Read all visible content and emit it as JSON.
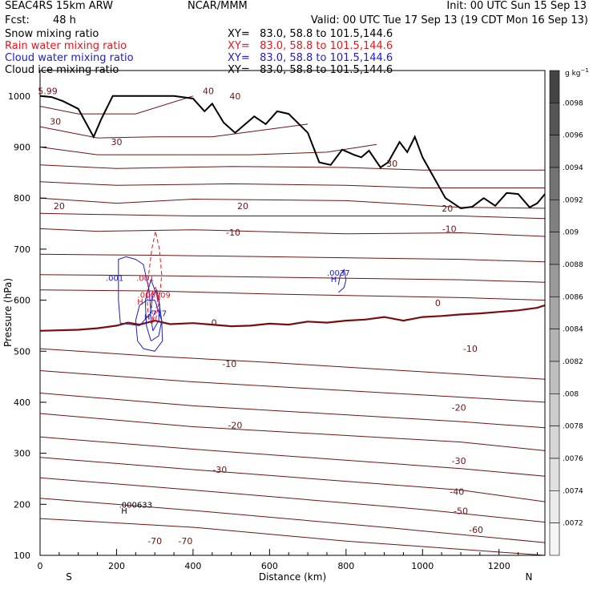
{
  "header": {
    "model": "SEAC4RS 15km ARW",
    "forecast_label": "Fcst:",
    "forecast_value": "48 h",
    "center": "NCAR/MMM",
    "init": "Init: 00 UTC Sun 15 Sep 13",
    "valid": "Valid: 00 UTC Tue 17 Sep 13 (19 CDT Mon 16 Sep 13)"
  },
  "fields": [
    {
      "name": "Snow mixing ratio",
      "xy": "XY=   83.0, 58.8 to 101.5,144.6",
      "color": "#000000"
    },
    {
      "name": "Rain water mixing ratio",
      "xy": "XY=   83.0, 58.8 to 101.5,144.6",
      "color": "#e8161e"
    },
    {
      "name": "Cloud water mixing ratio",
      "xy": "XY=   83.0, 58.8 to 101.5,144.6",
      "color": "#1c1ccc"
    },
    {
      "name": "Cloud ice mixing ratio",
      "xy": "XY=   83.0, 58.8 to 101.5,144.6",
      "color": "#000000"
    }
  ],
  "colors": {
    "temperature": "#6e1414",
    "freezing": "#7a0e0e",
    "rain": "#e8161e",
    "cloud": "#1c1ccc",
    "terrain": "#000000"
  },
  "chart_data": {
    "type": "cross-section",
    "xlabel": "Distance (km)",
    "ylabel": "Pressure (hPa)",
    "xlim": [
      0,
      1320
    ],
    "ylim": [
      1050,
      100
    ],
    "x_ticks": [
      0,
      200,
      400,
      600,
      800,
      1000,
      1200
    ],
    "y_ticks": [
      1000,
      900,
      800,
      700,
      600,
      500,
      400,
      300,
      200,
      100
    ],
    "endpoints": {
      "left": "S",
      "right": "N"
    },
    "colorbar": {
      "unit": "g kg",
      "unit_exp": "−1",
      "labels": [
        ".0098",
        ".0096",
        ".0094",
        ".0092",
        ".009",
        ".0088",
        ".0086",
        ".0084",
        ".0082",
        ".008",
        ".0078",
        ".0076",
        ".0074",
        ".0072"
      ]
    },
    "isotherm_labels": [
      {
        "text": "-70",
        "x": 300,
        "p": 128
      },
      {
        "text": "-70",
        "x": 380,
        "p": 128
      },
      {
        "text": "-60",
        "x": 1140,
        "p": 150
      },
      {
        "text": "-50",
        "x": 1100,
        "p": 187
      },
      {
        "text": "-40",
        "x": 1090,
        "p": 225
      },
      {
        "text": "-30",
        "x": 470,
        "p": 268
      },
      {
        "text": "-30",
        "x": 1095,
        "p": 285
      },
      {
        "text": "-20",
        "x": 510,
        "p": 355
      },
      {
        "text": "-20",
        "x": 1095,
        "p": 390
      },
      {
        "text": "-10",
        "x": 495,
        "p": 475
      },
      {
        "text": "-10",
        "x": 1125,
        "p": 505
      },
      {
        "text": "0",
        "x": 455,
        "p": 556
      },
      {
        "text": "0",
        "x": 1040,
        "p": 595
      },
      {
        "text": "-10",
        "x": 505,
        "p": 733
      },
      {
        "text": "-10",
        "x": 1070,
        "p": 740
      },
      {
        "text": "20",
        "x": 50,
        "p": 785
      },
      {
        "text": "20",
        "x": 530,
        "p": 785
      },
      {
        "text": "20",
        "x": 1065,
        "p": 780
      },
      {
        "text": "30",
        "x": 200,
        "p": 910
      },
      {
        "text": "30",
        "x": 40,
        "p": 950
      },
      {
        "text": "30",
        "x": 920,
        "p": 868
      },
      {
        "text": "40",
        "x": 440,
        "p": 1010
      },
      {
        "text": "40",
        "x": 510,
        "p": 1000
      },
      {
        "text": "5.99",
        "x": 20,
        "p": 1010
      }
    ],
    "isotherms": [
      {
        "x": [
          0,
          400,
          800,
          1320
        ],
        "p": [
          172,
          155,
          128,
          100
        ]
      },
      {
        "x": [
          0,
          400,
          900,
          1320
        ],
        "p": [
          212,
          188,
          155,
          125
        ]
      },
      {
        "x": [
          0,
          400,
          1000,
          1320
        ],
        "p": [
          252,
          228,
          190,
          165
        ]
      },
      {
        "x": [
          0,
          400,
          1100,
          1320
        ],
        "p": [
          292,
          268,
          228,
          205
        ]
      },
      {
        "x": [
          0,
          400,
          1100,
          1320
        ],
        "p": [
          332,
          308,
          270,
          255
        ]
      },
      {
        "x": [
          0,
          400,
          1100,
          1320
        ],
        "p": [
          378,
          352,
          322,
          305
        ]
      },
      {
        "x": [
          0,
          400,
          1100,
          1320
        ],
        "p": [
          418,
          393,
          362,
          350
        ]
      },
      {
        "x": [
          0,
          400,
          1100,
          1320
        ],
        "p": [
          462,
          440,
          410,
          400
        ]
      },
      {
        "x": [
          0,
          300,
          600,
          1100,
          1320
        ],
        "p": [
          505,
          490,
          478,
          455,
          445
        ]
      },
      {
        "x": [
          0,
          300,
          600,
          1100,
          1320
        ],
        "p": [
          620,
          618,
          612,
          605,
          600
        ]
      },
      {
        "x": [
          0,
          300,
          600,
          1100,
          1320
        ],
        "p": [
          650,
          648,
          645,
          640,
          635
        ]
      },
      {
        "x": [
          0,
          300,
          600,
          1100,
          1320
        ],
        "p": [
          690,
          688,
          685,
          680,
          675
        ]
      },
      {
        "x": [
          0,
          150,
          400,
          800,
          1100,
          1320
        ],
        "p": [
          740,
          735,
          738,
          730,
          732,
          725
        ]
      },
      {
        "x": [
          0,
          150,
          400,
          800,
          1100,
          1320
        ],
        "p": [
          770,
          768,
          765,
          765,
          765,
          760
        ]
      },
      {
        "x": [
          0,
          200,
          400,
          800,
          1100,
          1320
        ],
        "p": [
          800,
          790,
          798,
          795,
          782,
          780
        ]
      },
      {
        "x": [
          0,
          200,
          500,
          800,
          1000,
          1320
        ],
        "p": [
          832,
          825,
          828,
          825,
          820,
          820
        ]
      },
      {
        "x": [
          0,
          200,
          500,
          800,
          1000,
          1320
        ],
        "p": [
          865,
          858,
          862,
          860,
          855,
          855
        ]
      },
      {
        "x": [
          0,
          150,
          300,
          550,
          750,
          880
        ],
        "p": [
          900,
          885,
          885,
          885,
          890,
          905
        ]
      },
      {
        "x": [
          0,
          150,
          300,
          450,
          550,
          700
        ],
        "p": [
          940,
          918,
          920,
          920,
          930,
          945
        ]
      },
      {
        "x": [
          0,
          100,
          250,
          400
        ],
        "p": [
          980,
          965,
          965,
          1000
        ]
      }
    ],
    "freezing_line": {
      "x": [
        0,
        100,
        150,
        200,
        230,
        260,
        300,
        340,
        400,
        450,
        500,
        550,
        600,
        650,
        700,
        750,
        800,
        850,
        900,
        950,
        1000,
        1050,
        1100,
        1150,
        1200,
        1250,
        1300,
        1320
      ],
      "p": [
        540,
        542,
        545,
        550,
        556,
        552,
        560,
        553,
        555,
        552,
        549,
        550,
        554,
        552,
        558,
        556,
        560,
        562,
        567,
        560,
        567,
        569,
        572,
        574,
        577,
        580,
        585,
        590
      ]
    },
    "rain_contours": [
      {
        "x": [
          290,
          302,
          312,
          318,
          312,
          302,
          292,
          284,
          280,
          284,
          290
        ],
        "p": [
          555,
          560,
          600,
          650,
          700,
          735,
          700,
          650,
          600,
          560,
          555
        ]
      },
      {
        "x": [
          295,
          302,
          307,
          302,
          295,
          291,
          295
        ],
        "p": [
          560,
          575,
          600,
          625,
          620,
          595,
          560
        ]
      }
    ],
    "cloud_contours": [
      {
        "x": [
          270,
          300,
          320,
          318,
          300,
          280,
          260,
          250,
          255,
          270
        ],
        "p": [
          505,
          500,
          520,
          560,
          600,
          600,
          590,
          560,
          520,
          505
        ]
      },
      {
        "x": [
          290,
          310,
          318,
          310,
          290,
          275,
          278,
          290
        ],
        "p": [
          520,
          530,
          560,
          600,
          640,
          600,
          550,
          520
        ]
      },
      {
        "x": [
          295,
          310,
          313,
          305,
          295,
          288,
          295
        ],
        "p": [
          540,
          560,
          590,
          620,
          610,
          575,
          540
        ]
      },
      {
        "x": [
          210,
          260,
          290,
          285,
          270,
          250,
          225,
          205,
          205,
          210
        ],
        "p": [
          555,
          550,
          575,
          620,
          670,
          680,
          685,
          680,
          600,
          555
        ]
      },
      {
        "x": [
          780,
          795,
          800,
          795,
          785,
          780
        ],
        "p": [
          615,
          625,
          640,
          660,
          650,
          630
        ]
      }
    ],
    "point_labels": [
      {
        "text": "H",
        "x": 220,
        "p": 188,
        "color": "#000000"
      },
      {
        "text": ".000633",
        "x": 250,
        "p": 200,
        "color": "#000000"
      },
      {
        "text": "H",
        "x": 280,
        "p": 568,
        "color": "#1c1ccc"
      },
      {
        "text": ".777",
        "x": 308,
        "p": 575,
        "color": "#1c1ccc"
      },
      {
        "text": "H",
        "x": 262,
        "p": 598,
        "color": "#e8161e"
      },
      {
        "text": ".000909",
        "x": 298,
        "p": 611,
        "color": "#e8161e"
      },
      {
        "text": ".001",
        "x": 195,
        "p": 644,
        "color": "#1c1ccc"
      },
      {
        "text": ".001",
        "x": 275,
        "p": 644,
        "color": "#e8161e"
      },
      {
        "text": "H",
        "x": 768,
        "p": 642,
        "color": "#1c1ccc"
      },
      {
        "text": ".0037",
        "x": 780,
        "p": 654,
        "color": "#1c1ccc"
      }
    ],
    "terrain": {
      "x": [
        0,
        30,
        60,
        100,
        140,
        160,
        190,
        250,
        350,
        400,
        430,
        450,
        480,
        510,
        560,
        590,
        620,
        650,
        700,
        730,
        760,
        790,
        820,
        840,
        860,
        890,
        910,
        940,
        960,
        980,
        1000,
        1030,
        1060,
        1080,
        1100,
        1130,
        1160,
        1190,
        1220,
        1250,
        1280,
        1300,
        1320
      ],
      "p": [
        1000,
        998,
        990,
        975,
        920,
        955,
        1000,
        1000,
        1000,
        995,
        970,
        985,
        948,
        928,
        960,
        945,
        970,
        965,
        928,
        870,
        865,
        895,
        885,
        880,
        893,
        860,
        870,
        910,
        890,
        920,
        880,
        840,
        800,
        790,
        780,
        783,
        800,
        785,
        810,
        808,
        782,
        790,
        808
      ]
    }
  }
}
